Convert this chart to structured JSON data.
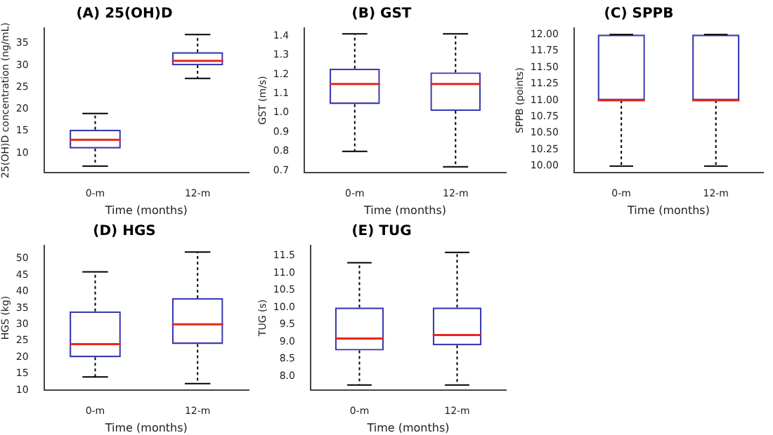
{
  "chart_data": [
    {
      "type": "box",
      "title": "(A) 25(OH)D",
      "xlabel": "Time (months)",
      "ylabel": "25(OH)D concentration (ng/mL)",
      "categories": [
        "0-m",
        "12-m"
      ],
      "color": "#3b3bb3",
      "ylim": [
        5.5,
        38.5
      ],
      "yticks": [
        10,
        15,
        20,
        25,
        30,
        35
      ],
      "boxes": [
        {
          "low": 7,
          "q1": 11,
          "median": 13,
          "q3": 15.3,
          "high": 19
        },
        {
          "low": 27,
          "q1": 30,
          "median": 31,
          "q3": 33,
          "high": 37
        }
      ]
    },
    {
      "type": "box",
      "title": "(B) GST",
      "xlabel": "Time (months)",
      "ylabel": "GST (m/s)",
      "categories": [
        "0-m",
        "12-m"
      ],
      "color": "#3b3bb3",
      "ylim": [
        0.69,
        1.44
      ],
      "yticks": [
        0.7,
        0.8,
        0.9,
        {
          "value": 1,
          "label": "1.0"
        },
        1.1,
        1.2,
        1.3,
        1.4
      ],
      "boxes": [
        {
          "low": 0.8,
          "q1": 1.045,
          "median": 1.15,
          "q3": 1.23,
          "high": 1.41
        },
        {
          "low": 0.72,
          "q1": 1.01,
          "median": 1.15,
          "q3": 1.21,
          "high": 1.41
        }
      ]
    },
    {
      "type": "box",
      "title": "(C) SPPB",
      "xlabel": "Time (months)",
      "ylabel": "SPPB (points)",
      "categories": [
        "0-m",
        "12-m"
      ],
      "color": "#3b3bb3",
      "ylim": [
        9.9,
        12.1
      ],
      "yticks": [
        {
          "value": 10,
          "label": "10.00"
        },
        {
          "value": 10.25,
          "label": "10.25"
        },
        {
          "value": 10.5,
          "label": "10.50"
        },
        {
          "value": 10.75,
          "label": "10.75"
        },
        {
          "value": 11,
          "label": "11.00"
        },
        {
          "value": 11.25,
          "label": "11.25"
        },
        {
          "value": 11.5,
          "label": "11.50"
        },
        {
          "value": 11.75,
          "label": "11.75"
        },
        {
          "value": 12,
          "label": "12.00"
        }
      ],
      "boxes": [
        {
          "low": 10,
          "q1": 11,
          "median": 11,
          "q3": 12,
          "high": 12
        },
        {
          "low": 10,
          "q1": 11,
          "median": 11,
          "q3": 12,
          "high": 12
        }
      ]
    },
    {
      "type": "box",
      "title": "(D) HGS",
      "xlabel": "Time (months)",
      "ylabel": "HGS (kg)",
      "categories": [
        "0-m",
        "12-m"
      ],
      "color": "#3b3bb3",
      "ylim": [
        10,
        54
      ],
      "yticks": [
        10,
        15,
        20,
        25,
        30,
        35,
        40,
        45,
        50
      ],
      "boxes": [
        {
          "low": 14,
          "q1": 20,
          "median": 24,
          "q3": 34,
          "high": 46
        },
        {
          "low": 12,
          "q1": 24,
          "median": 30,
          "q3": 38,
          "high": 52
        }
      ]
    },
    {
      "type": "box",
      "title": "(E) TUG",
      "xlabel": "Time (months)",
      "ylabel": "TUG (s)",
      "categories": [
        "0-m",
        "12-m"
      ],
      "color": "#3b3bb3",
      "ylim": [
        7.6,
        11.8
      ],
      "yticks": [
        {
          "value": 8,
          "label": "8.0"
        },
        8.5,
        {
          "value": 9,
          "label": "9.0"
        },
        9.5,
        {
          "value": 10,
          "label": "10.0"
        },
        10.5,
        {
          "value": 11,
          "label": "11.0"
        },
        11.5
      ],
      "boxes": [
        {
          "low": 7.75,
          "q1": 8.75,
          "median": 9.1,
          "q3": 10,
          "high": 11.3
        },
        {
          "low": 7.75,
          "q1": 8.9,
          "median": 9.2,
          "q3": 10,
          "high": 11.6
        }
      ]
    }
  ]
}
